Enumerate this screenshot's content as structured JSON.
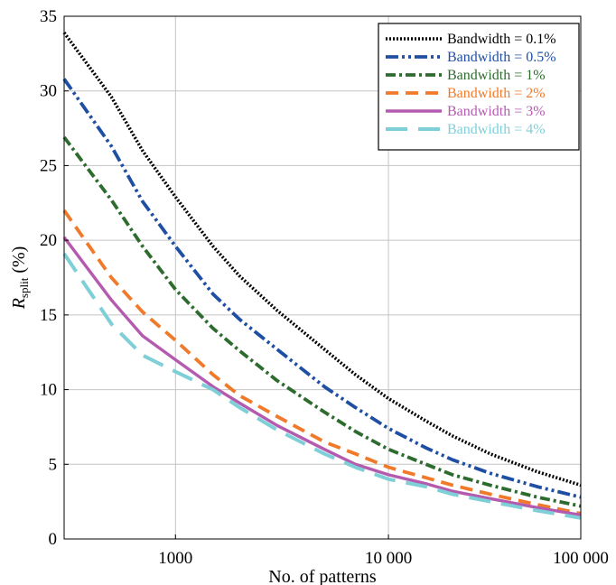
{
  "chart_data": {
    "type": "line",
    "title": "",
    "xlabel": "No. of patterns",
    "ylabel": {
      "main": "R",
      "sub": "split",
      "suffix": " (%)"
    },
    "x_scale": "log",
    "xlim": [
      300,
      80000
    ],
    "ylim": [
      0,
      35
    ],
    "grid": true,
    "legend_position": "top-right",
    "x_ticks": [
      {
        "value": 1000,
        "label": "1000"
      },
      {
        "value": 10000,
        "label": "10 000"
      },
      {
        "value": 100000,
        "label": "100 000"
      }
    ],
    "y_ticks": [
      {
        "value": 0,
        "label": "0"
      },
      {
        "value": 5,
        "label": "5"
      },
      {
        "value": 10,
        "label": "10"
      },
      {
        "value": 15,
        "label": "15"
      },
      {
        "value": 20,
        "label": "20"
      },
      {
        "value": 25,
        "label": "25"
      },
      {
        "value": 30,
        "label": "30"
      },
      {
        "value": 35,
        "label": "35"
      }
    ],
    "x": [
      300,
      500,
      700,
      1000,
      1500,
      2000,
      3000,
      5000,
      7000,
      10000,
      15000,
      20000,
      30000,
      50000,
      80000
    ],
    "series": [
      {
        "name": "Bandwidth = 0.1%",
        "color": "#000000",
        "style": "dotted",
        "values": [
          33.9,
          29.6,
          26.0,
          22.9,
          19.6,
          17.6,
          15.3,
          12.7,
          11.0,
          9.4,
          7.9,
          6.9,
          5.7,
          4.5,
          3.6
        ]
      },
      {
        "name": "Bandwidth = 0.5%",
        "color": "#1f4fa3",
        "style": "dash-dot-dot",
        "values": [
          30.8,
          26.3,
          22.6,
          19.6,
          16.4,
          14.7,
          12.7,
          10.2,
          8.8,
          7.4,
          6.1,
          5.3,
          4.4,
          3.5,
          2.8
        ]
      },
      {
        "name": "Bandwidth = 1%",
        "color": "#2e6b2e",
        "style": "dash-dot",
        "values": [
          26.9,
          22.7,
          19.6,
          16.7,
          14.1,
          12.6,
          10.6,
          8.5,
          7.2,
          6.0,
          5.0,
          4.3,
          3.6,
          2.8,
          2.2
        ]
      },
      {
        "name": "Bandwidth = 2%",
        "color": "#f07a2a",
        "style": "dashed",
        "values": [
          22.0,
          17.5,
          15.2,
          13.3,
          11.0,
          9.6,
          8.2,
          6.5,
          5.7,
          4.8,
          4.1,
          3.6,
          3.0,
          2.3,
          1.7
        ]
      },
      {
        "name": "Bandwidth = 3%",
        "color": "#b45bb0",
        "style": "solid",
        "values": [
          20.2,
          16.0,
          13.6,
          12.0,
          10.2,
          9.1,
          7.6,
          6.0,
          5.0,
          4.3,
          3.7,
          3.2,
          2.7,
          2.1,
          1.6
        ]
      },
      {
        "name": "Bandwidth = 4%",
        "color": "#7fcfd8",
        "style": "long-dash",
        "values": [
          19.1,
          14.4,
          12.3,
          11.2,
          10.0,
          8.8,
          7.3,
          5.7,
          4.8,
          4.0,
          3.5,
          3.0,
          2.5,
          1.9,
          1.4
        ]
      }
    ]
  }
}
